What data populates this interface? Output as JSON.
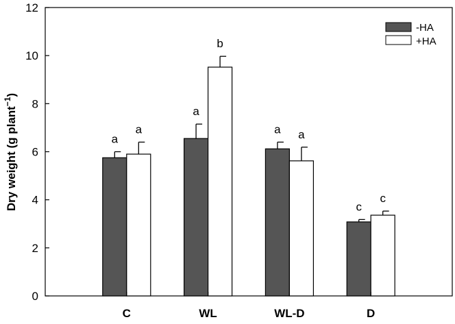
{
  "chart_data": {
    "type": "bar",
    "title": "",
    "xlabel": "",
    "ylabel": "Dry weight (g plant",
    "ylabel_superscript": "−1",
    "ylabel_close": ")",
    "categories": [
      "C",
      "WL",
      "WL-D",
      "D"
    ],
    "ylim": [
      0,
      12
    ],
    "yticks": [
      0,
      2,
      4,
      6,
      8,
      10,
      12
    ],
    "grid": false,
    "legend_position": "top-right",
    "series": [
      {
        "name": "-HA",
        "color": "#555555",
        "values": [
          5.75,
          6.55,
          6.12,
          3.08
        ],
        "errors": [
          0.25,
          0.6,
          0.28,
          0.1
        ],
        "significance": [
          "a",
          "a",
          "a",
          "c"
        ]
      },
      {
        "name": "+HA",
        "color": "#ffffff",
        "values": [
          5.9,
          9.52,
          5.62,
          3.36
        ],
        "errors": [
          0.5,
          0.45,
          0.57,
          0.17
        ],
        "significance": [
          "a",
          "b",
          "a",
          "c"
        ]
      }
    ]
  }
}
